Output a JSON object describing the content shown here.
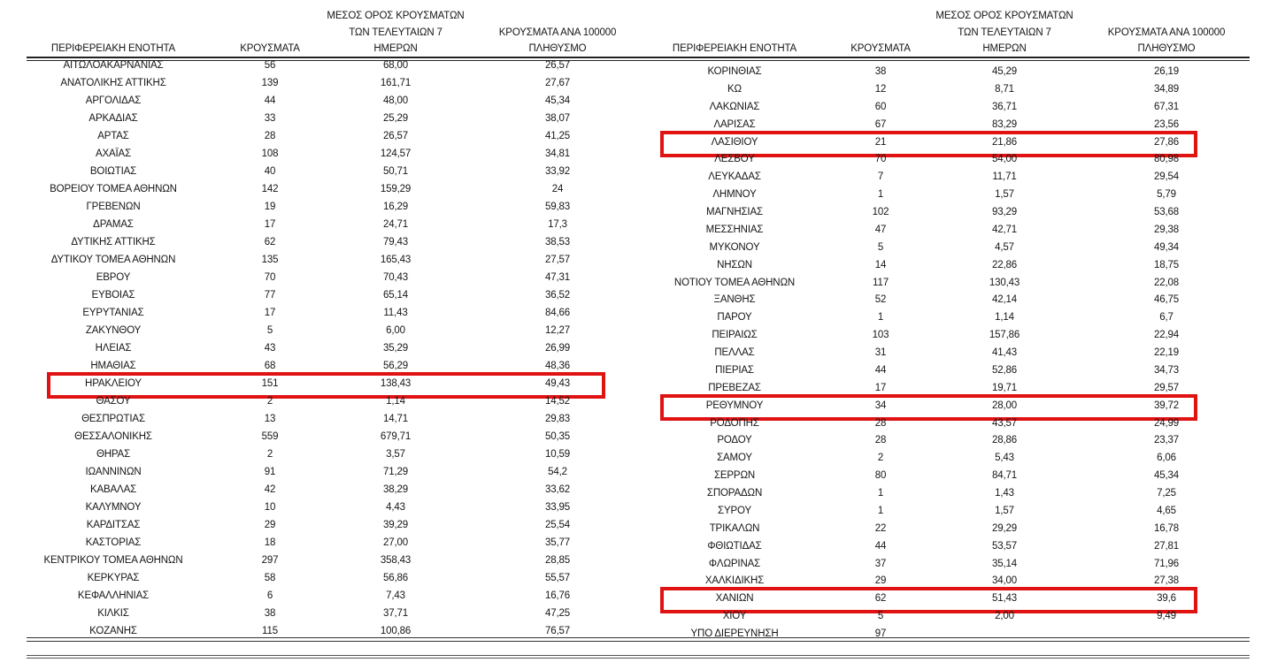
{
  "headers": {
    "region": "ΠΕΡΙΦΕΡΕΙΑΚΗ ΕΝΟΤΗΤΑ",
    "cases": "ΚΡΟΥΣΜΑΤΑ",
    "avg7_l1": "ΜΕΣΟΣ ΟΡΟΣ ΚΡΟΥΣΜΑΤΩΝ",
    "avg7_l2": "ΤΩΝ ΤΕΛΕΥΤΑΙΩΝ 7",
    "avg7_l3": "ΗΜΕΡΩΝ",
    "per100k_l1": "ΚΡΟΥΣΜΑΤΑ ΑΝΑ 100000",
    "per100k_l2": "ΠΛΗΘΥΣΜΟ"
  },
  "highlight_color": "#e01212",
  "tables": {
    "left": {
      "rows": [
        {
          "region": "ΑΙΤΩΛΟΑΚΑΡΝΑΝΙΑΣ",
          "cases": "56",
          "avg7": "68,00",
          "per100k": "26,57",
          "highlighted": false
        },
        {
          "region": "ΑΝΑΤΟΛΙΚΗΣ ΑΤΤΙΚΗΣ",
          "cases": "139",
          "avg7": "161,71",
          "per100k": "27,67",
          "highlighted": false
        },
        {
          "region": "ΑΡΓΟΛΙΔΑΣ",
          "cases": "44",
          "avg7": "48,00",
          "per100k": "45,34",
          "highlighted": false
        },
        {
          "region": "ΑΡΚΑΔΙΑΣ",
          "cases": "33",
          "avg7": "25,29",
          "per100k": "38,07",
          "highlighted": false
        },
        {
          "region": "ΑΡΤΑΣ",
          "cases": "28",
          "avg7": "26,57",
          "per100k": "41,25",
          "highlighted": false
        },
        {
          "region": "ΑΧΑΪΑΣ",
          "cases": "108",
          "avg7": "124,57",
          "per100k": "34,81",
          "highlighted": false
        },
        {
          "region": "ΒΟΙΩΤΙΑΣ",
          "cases": "40",
          "avg7": "50,71",
          "per100k": "33,92",
          "highlighted": false
        },
        {
          "region": "ΒΟΡΕΙΟΥ ΤΟΜΕΑ ΑΘΗΝΩΝ",
          "cases": "142",
          "avg7": "159,29",
          "per100k": "24",
          "highlighted": false
        },
        {
          "region": "ΓΡΕΒΕΝΩΝ",
          "cases": "19",
          "avg7": "16,29",
          "per100k": "59,83",
          "highlighted": false
        },
        {
          "region": "ΔΡΑΜΑΣ",
          "cases": "17",
          "avg7": "24,71",
          "per100k": "17,3",
          "highlighted": false
        },
        {
          "region": "ΔΥΤΙΚΗΣ ΑΤΤΙΚΗΣ",
          "cases": "62",
          "avg7": "79,43",
          "per100k": "38,53",
          "highlighted": false
        },
        {
          "region": "ΔΥΤΙΚΟΥ ΤΟΜΕΑ ΑΘΗΝΩΝ",
          "cases": "135",
          "avg7": "165,43",
          "per100k": "27,57",
          "highlighted": false
        },
        {
          "region": "ΕΒΡΟΥ",
          "cases": "70",
          "avg7": "70,43",
          "per100k": "47,31",
          "highlighted": false
        },
        {
          "region": "ΕΥΒΟΙΑΣ",
          "cases": "77",
          "avg7": "65,14",
          "per100k": "36,52",
          "highlighted": false
        },
        {
          "region": "ΕΥΡΥΤΑΝΙΑΣ",
          "cases": "17",
          "avg7": "11,43",
          "per100k": "84,66",
          "highlighted": false
        },
        {
          "region": "ΖΑΚΥΝΘΟΥ",
          "cases": "5",
          "avg7": "6,00",
          "per100k": "12,27",
          "highlighted": false
        },
        {
          "region": "ΗΛΕΙΑΣ",
          "cases": "43",
          "avg7": "35,29",
          "per100k": "26,99",
          "highlighted": false
        },
        {
          "region": "ΗΜΑΘΙΑΣ",
          "cases": "68",
          "avg7": "56,29",
          "per100k": "48,36",
          "highlighted": false
        },
        {
          "region": "ΗΡΑΚΛΕΙΟΥ",
          "cases": "151",
          "avg7": "138,43",
          "per100k": "49,43",
          "highlighted": true
        },
        {
          "region": "ΘΑΣΟΥ",
          "cases": "2",
          "avg7": "1,14",
          "per100k": "14,52",
          "highlighted": false
        },
        {
          "region": "ΘΕΣΠΡΩΤΙΑΣ",
          "cases": "13",
          "avg7": "14,71",
          "per100k": "29,83",
          "highlighted": false
        },
        {
          "region": "ΘΕΣΣΑΛΟΝΙΚΗΣ",
          "cases": "559",
          "avg7": "679,71",
          "per100k": "50,35",
          "highlighted": false
        },
        {
          "region": "ΘΗΡΑΣ",
          "cases": "2",
          "avg7": "3,57",
          "per100k": "10,59",
          "highlighted": false
        },
        {
          "region": "ΙΩΑΝΝΙΝΩΝ",
          "cases": "91",
          "avg7": "71,29",
          "per100k": "54,2",
          "highlighted": false
        },
        {
          "region": "ΚΑΒΑΛΑΣ",
          "cases": "42",
          "avg7": "38,29",
          "per100k": "33,62",
          "highlighted": false
        },
        {
          "region": "ΚΑΛΥΜΝΟΥ",
          "cases": "10",
          "avg7": "4,43",
          "per100k": "33,95",
          "highlighted": false
        },
        {
          "region": "ΚΑΡΔΙΤΣΑΣ",
          "cases": "29",
          "avg7": "39,29",
          "per100k": "25,54",
          "highlighted": false
        },
        {
          "region": "ΚΑΣΤΟΡΙΑΣ",
          "cases": "18",
          "avg7": "27,00",
          "per100k": "35,77",
          "highlighted": false
        },
        {
          "region": "ΚΕΝΤΡΙΚΟΥ ΤΟΜΕΑ ΑΘΗΝΩΝ",
          "cases": "297",
          "avg7": "358,43",
          "per100k": "28,85",
          "highlighted": false
        },
        {
          "region": "ΚΕΡΚΥΡΑΣ",
          "cases": "58",
          "avg7": "56,86",
          "per100k": "55,57",
          "highlighted": false
        },
        {
          "region": "ΚΕΦΑΛΛΗΝΙΑΣ",
          "cases": "6",
          "avg7": "7,43",
          "per100k": "16,76",
          "highlighted": false
        },
        {
          "region": "ΚΙΛΚΙΣ",
          "cases": "38",
          "avg7": "37,71",
          "per100k": "47,25",
          "highlighted": false
        },
        {
          "region": "ΚΟΖΑΝΗΣ",
          "cases": "115",
          "avg7": "100,86",
          "per100k": "76,57",
          "highlighted": false
        }
      ]
    },
    "right": {
      "rows": [
        {
          "region": "ΚΟΡΙΝΘΙΑΣ",
          "cases": "38",
          "avg7": "45,29",
          "per100k": "26,19",
          "highlighted": false
        },
        {
          "region": "ΚΩ",
          "cases": "12",
          "avg7": "8,71",
          "per100k": "34,89",
          "highlighted": false
        },
        {
          "region": "ΛΑΚΩΝΙΑΣ",
          "cases": "60",
          "avg7": "36,71",
          "per100k": "67,31",
          "highlighted": false
        },
        {
          "region": "ΛΑΡΙΣΑΣ",
          "cases": "67",
          "avg7": "83,29",
          "per100k": "23,56",
          "highlighted": false
        },
        {
          "region": "ΛΑΣΙΘΙΟΥ",
          "cases": "21",
          "avg7": "21,86",
          "per100k": "27,86",
          "highlighted": true
        },
        {
          "region": "ΛΕΣΒΟΥ",
          "cases": "70",
          "avg7": "54,00",
          "per100k": "80,98",
          "highlighted": false
        },
        {
          "region": "ΛΕΥΚΑΔΑΣ",
          "cases": "7",
          "avg7": "11,71",
          "per100k": "29,54",
          "highlighted": false
        },
        {
          "region": "ΛΗΜΝΟΥ",
          "cases": "1",
          "avg7": "1,57",
          "per100k": "5,79",
          "highlighted": false
        },
        {
          "region": "ΜΑΓΝΗΣΙΑΣ",
          "cases": "102",
          "avg7": "93,29",
          "per100k": "53,68",
          "highlighted": false
        },
        {
          "region": "ΜΕΣΣΗΝΙΑΣ",
          "cases": "47",
          "avg7": "42,71",
          "per100k": "29,38",
          "highlighted": false
        },
        {
          "region": "ΜΥΚΟΝΟΥ",
          "cases": "5",
          "avg7": "4,57",
          "per100k": "49,34",
          "highlighted": false
        },
        {
          "region": "ΝΗΣΩΝ",
          "cases": "14",
          "avg7": "22,86",
          "per100k": "18,75",
          "highlighted": false
        },
        {
          "region": "ΝΟΤΙΟΥ ΤΟΜΕΑ ΑΘΗΝΩΝ",
          "cases": "117",
          "avg7": "130,43",
          "per100k": "22,08",
          "highlighted": false
        },
        {
          "region": "ΞΑΝΘΗΣ",
          "cases": "52",
          "avg7": "42,14",
          "per100k": "46,75",
          "highlighted": false
        },
        {
          "region": "ΠΑΡΟΥ",
          "cases": "1",
          "avg7": "1,14",
          "per100k": "6,7",
          "highlighted": false
        },
        {
          "region": "ΠΕΙΡΑΙΩΣ",
          "cases": "103",
          "avg7": "157,86",
          "per100k": "22,94",
          "highlighted": false
        },
        {
          "region": "ΠΕΛΛΑΣ",
          "cases": "31",
          "avg7": "41,43",
          "per100k": "22,19",
          "highlighted": false
        },
        {
          "region": "ΠΙΕΡΙΑΣ",
          "cases": "44",
          "avg7": "52,86",
          "per100k": "34,73",
          "highlighted": false
        },
        {
          "region": "ΠΡΕΒΕΖΑΣ",
          "cases": "17",
          "avg7": "19,71",
          "per100k": "29,57",
          "highlighted": false
        },
        {
          "region": "ΡΕΘΥΜΝΟΥ",
          "cases": "34",
          "avg7": "28,00",
          "per100k": "39,72",
          "highlighted": true
        },
        {
          "region": "ΡΟΔΟΠΗΣ",
          "cases": "28",
          "avg7": "43,57",
          "per100k": "24,99",
          "highlighted": false
        },
        {
          "region": "ΡΟΔΟΥ",
          "cases": "28",
          "avg7": "28,86",
          "per100k": "23,37",
          "highlighted": false
        },
        {
          "region": "ΣΑΜΟΥ",
          "cases": "2",
          "avg7": "5,43",
          "per100k": "6,06",
          "highlighted": false
        },
        {
          "region": "ΣΕΡΡΩΝ",
          "cases": "80",
          "avg7": "84,71",
          "per100k": "45,34",
          "highlighted": false
        },
        {
          "region": "ΣΠΟΡΑΔΩΝ",
          "cases": "1",
          "avg7": "1,43",
          "per100k": "7,25",
          "highlighted": false
        },
        {
          "region": "ΣΥΡΟΥ",
          "cases": "1",
          "avg7": "1,57",
          "per100k": "4,65",
          "highlighted": false
        },
        {
          "region": "ΤΡΙΚΑΛΩΝ",
          "cases": "22",
          "avg7": "29,29",
          "per100k": "16,78",
          "highlighted": false
        },
        {
          "region": "ΦΘΙΩΤΙΔΑΣ",
          "cases": "44",
          "avg7": "53,57",
          "per100k": "27,81",
          "highlighted": false
        },
        {
          "region": "ΦΛΩΡΙΝΑΣ",
          "cases": "37",
          "avg7": "35,14",
          "per100k": "71,96",
          "highlighted": false
        },
        {
          "region": "ΧΑΛΚΙΔΙΚΗΣ",
          "cases": "29",
          "avg7": "34,00",
          "per100k": "27,38",
          "highlighted": false
        },
        {
          "region": "ΧΑΝΙΩΝ",
          "cases": "62",
          "avg7": "51,43",
          "per100k": "39,6",
          "highlighted": true
        },
        {
          "region": "ΧΙΟΥ",
          "cases": "5",
          "avg7": "2,00",
          "per100k": "9,49",
          "highlighted": false
        },
        {
          "region": "ΥΠΟ ΔΙΕΡΕΥΝΗΣΗ",
          "cases": "97",
          "avg7": "",
          "per100k": "",
          "highlighted": false
        }
      ]
    }
  }
}
